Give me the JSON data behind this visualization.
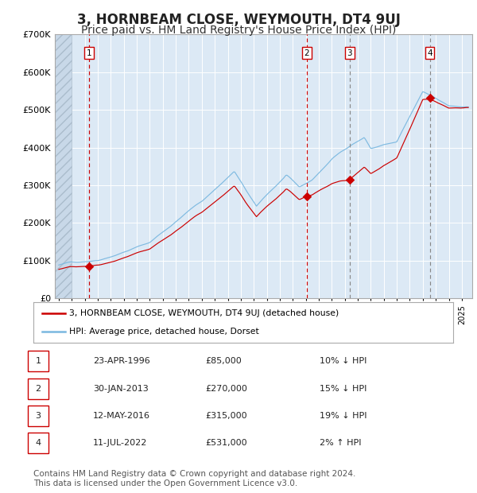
{
  "title": "3, HORNBEAM CLOSE, WEYMOUTH, DT4 9UJ",
  "subtitle": "Price paid vs. HM Land Registry's House Price Index (HPI)",
  "title_fontsize": 12,
  "subtitle_fontsize": 10,
  "background_color": "#ffffff",
  "plot_bg_color": "#dce9f5",
  "grid_color": "#ffffff",
  "hpi_color": "#7ab8e0",
  "price_color": "#cc0000",
  "ylim": [
    0,
    700000
  ],
  "yticks": [
    0,
    100000,
    200000,
    300000,
    400000,
    500000,
    600000,
    700000
  ],
  "ytick_labels": [
    "£0",
    "£100K",
    "£200K",
    "£300K",
    "£400K",
    "£500K",
    "£600K",
    "£700K"
  ],
  "xlim_start": 1993.7,
  "xlim_end": 2025.8,
  "sale_dates": [
    1996.31,
    2013.08,
    2016.36,
    2022.53
  ],
  "sale_prices": [
    85000,
    270000,
    315000,
    531000
  ],
  "sale_labels": [
    "1",
    "2",
    "3",
    "4"
  ],
  "vline_colors": [
    "#cc0000",
    "#cc0000",
    "#888888",
    "#888888"
  ],
  "vline_styles": [
    "--",
    "--",
    "--",
    "--"
  ],
  "box_edge_colors": [
    "#cc0000",
    "#cc0000",
    "#cc0000",
    "#cc0000"
  ],
  "legend_entries": [
    "3, HORNBEAM CLOSE, WEYMOUTH, DT4 9UJ (detached house)",
    "HPI: Average price, detached house, Dorset"
  ],
  "table_data": [
    [
      "1",
      "23-APR-1996",
      "£85,000",
      "10% ↓ HPI"
    ],
    [
      "2",
      "30-JAN-2013",
      "£270,000",
      "15% ↓ HPI"
    ],
    [
      "3",
      "12-MAY-2016",
      "£315,000",
      "19% ↓ HPI"
    ],
    [
      "4",
      "11-JUL-2022",
      "£531,000",
      "2% ↑ HPI"
    ]
  ],
  "footer_text": "Contains HM Land Registry data © Crown copyright and database right 2024.\nThis data is licensed under the Open Government Licence v3.0.",
  "footer_fontsize": 7.5
}
